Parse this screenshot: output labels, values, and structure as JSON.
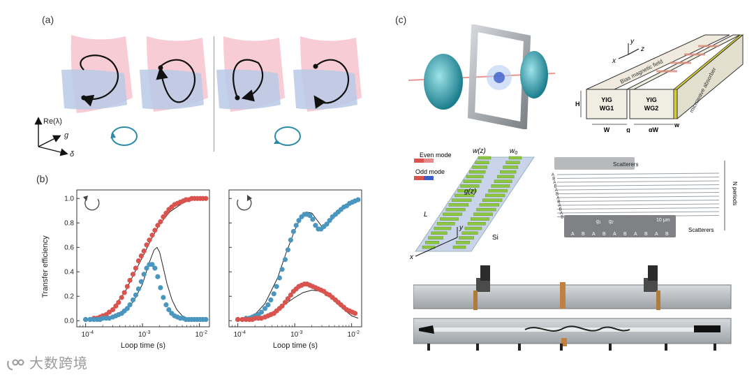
{
  "labels": {
    "a": "(a)",
    "b": "(b)",
    "c": "(c)"
  },
  "panel_a": {
    "axis_re": "Re(λ)",
    "axis_g": "g",
    "axis_delta": "δ"
  },
  "chart_data": [
    {
      "type": "scatter",
      "panel": "left",
      "title": "",
      "xlabel": "Loop time (s)",
      "ylabel": "Transfer efficiency",
      "xscale": "log",
      "xlim": [
        7e-05,
        0.015
      ],
      "ylim": [
        -0.05,
        1.07
      ],
      "xticks": [
        "10^-4",
        "10^-3",
        "10^-2"
      ],
      "yticks": [
        "0.0",
        "0.2",
        "0.4",
        "0.6",
        "0.8",
        "1.0"
      ],
      "rotation": "counterclockwise",
      "series": [
        {
          "color": "#d9534f",
          "x": [
            0.0001,
            0.00012,
            0.00014,
            0.00016,
            0.00018,
            0.0002,
            0.00023,
            0.00026,
            0.0003,
            0.00034,
            0.00038,
            0.00043,
            0.00048,
            0.00054,
            0.0006,
            0.00068,
            0.00076,
            0.00085,
            0.00095,
            0.00106,
            0.00118,
            0.00132,
            0.00148,
            0.00165,
            0.00185,
            0.00207,
            0.00232,
            0.0026,
            0.0029,
            0.00325,
            0.00365,
            0.0041,
            0.0046,
            0.0052,
            0.0058,
            0.0065,
            0.0073,
            0.0082,
            0.0092,
            0.0103,
            0.0115,
            0.013
          ],
          "y": [
            0.01,
            0.01,
            0.02,
            0.02,
            0.03,
            0.04,
            0.05,
            0.07,
            0.09,
            0.12,
            0.15,
            0.19,
            0.23,
            0.28,
            0.33,
            0.38,
            0.43,
            0.49,
            0.53,
            0.57,
            0.62,
            0.66,
            0.7,
            0.74,
            0.78,
            0.81,
            0.85,
            0.88,
            0.91,
            0.93,
            0.95,
            0.96,
            0.97,
            0.98,
            0.99,
            0.99,
            1.0,
            1.0,
            1.0,
            1.0,
            1.0,
            1.0
          ]
        },
        {
          "color": "#4a96bf",
          "x": [
            0.0001,
            0.00012,
            0.00014,
            0.00016,
            0.00018,
            0.0002,
            0.00023,
            0.00026,
            0.0003,
            0.00034,
            0.00038,
            0.00043,
            0.00048,
            0.00054,
            0.0006,
            0.00068,
            0.00076,
            0.00085,
            0.00095,
            0.00106,
            0.00118,
            0.00132,
            0.00148,
            0.00165,
            0.00185,
            0.00207,
            0.00232,
            0.0026,
            0.0029,
            0.00325,
            0.00365,
            0.0041,
            0.0046,
            0.0052,
            0.0058,
            0.0065,
            0.0073,
            0.0082,
            0.0092,
            0.0103,
            0.0115,
            0.013
          ],
          "y": [
            0.01,
            0.01,
            0.01,
            0.01,
            0.01,
            0.02,
            0.02,
            0.02,
            0.03,
            0.04,
            0.05,
            0.06,
            0.08,
            0.1,
            0.13,
            0.17,
            0.21,
            0.26,
            0.32,
            0.38,
            0.43,
            0.46,
            0.46,
            0.43,
            0.36,
            0.27,
            0.19,
            0.13,
            0.09,
            0.06,
            0.04,
            0.03,
            0.02,
            0.02,
            0.01,
            0.01,
            0.01,
            0.01,
            0.01,
            0.01,
            0.01,
            0.01
          ]
        }
      ],
      "fit_lines": [
        {
          "color": "#222222",
          "x": [
            0.0001,
            0.0002,
            0.0003,
            0.0005,
            0.0007,
            0.001,
            0.0014,
            0.002,
            0.003,
            0.005,
            0.007,
            0.01,
            0.013
          ],
          "y": [
            0.0,
            0.04,
            0.1,
            0.24,
            0.38,
            0.52,
            0.66,
            0.79,
            0.89,
            0.96,
            0.99,
            1.0,
            1.0
          ]
        },
        {
          "color": "#222222",
          "x": [
            0.0001,
            0.0002,
            0.0003,
            0.0005,
            0.0007,
            0.001,
            0.0013,
            0.0016,
            0.0018,
            0.002,
            0.0023,
            0.0027,
            0.0033,
            0.004,
            0.005,
            0.007,
            0.01,
            0.013
          ],
          "y": [
            0.0,
            0.01,
            0.03,
            0.08,
            0.16,
            0.3,
            0.47,
            0.58,
            0.6,
            0.56,
            0.44,
            0.3,
            0.17,
            0.09,
            0.04,
            0.01,
            0.0,
            0.0
          ]
        }
      ]
    },
    {
      "type": "scatter",
      "panel": "right",
      "title": "",
      "xlabel": "Loop time (s)",
      "ylabel": "",
      "xscale": "log",
      "xlim": [
        7e-05,
        0.015
      ],
      "ylim": [
        -0.05,
        1.07
      ],
      "xticks": [
        "10^-4",
        "10^-3",
        "10^-2"
      ],
      "yticks": [],
      "rotation": "clockwise",
      "series": [
        {
          "color": "#4a96bf",
          "x": [
            0.0001,
            0.00012,
            0.00014,
            0.00016,
            0.00018,
            0.0002,
            0.00023,
            0.00026,
            0.0003,
            0.00034,
            0.00038,
            0.00043,
            0.00048,
            0.00054,
            0.0006,
            0.00068,
            0.00076,
            0.00085,
            0.00095,
            0.00106,
            0.00118,
            0.00132,
            0.00148,
            0.00165,
            0.00185,
            0.00207,
            0.00232,
            0.0026,
            0.0029,
            0.00325,
            0.00365,
            0.0041,
            0.0046,
            0.0052,
            0.0058,
            0.0065,
            0.0073,
            0.0082,
            0.0092,
            0.0103,
            0.0115,
            0.013
          ],
          "y": [
            0.01,
            0.01,
            0.02,
            0.02,
            0.03,
            0.04,
            0.05,
            0.07,
            0.1,
            0.13,
            0.17,
            0.22,
            0.28,
            0.35,
            0.42,
            0.5,
            0.58,
            0.66,
            0.73,
            0.78,
            0.82,
            0.85,
            0.87,
            0.87,
            0.86,
            0.83,
            0.78,
            0.75,
            0.75,
            0.77,
            0.79,
            0.82,
            0.85,
            0.87,
            0.89,
            0.91,
            0.93,
            0.94,
            0.96,
            0.97,
            0.98,
            0.99
          ]
        },
        {
          "color": "#d9534f",
          "x": [
            0.0001,
            0.00012,
            0.00014,
            0.00016,
            0.00018,
            0.0002,
            0.00023,
            0.00026,
            0.0003,
            0.00034,
            0.00038,
            0.00043,
            0.00048,
            0.00054,
            0.0006,
            0.00068,
            0.00076,
            0.00085,
            0.00095,
            0.00106,
            0.00118,
            0.00132,
            0.00148,
            0.00165,
            0.00185,
            0.00207,
            0.00232,
            0.0026,
            0.0029,
            0.00325,
            0.00365,
            0.0041,
            0.0046,
            0.0052,
            0.0058,
            0.0065,
            0.0073,
            0.0082,
            0.0092,
            0.0103,
            0.0115
          ],
          "y": [
            0.01,
            0.01,
            0.01,
            0.01,
            0.01,
            0.02,
            0.02,
            0.02,
            0.03,
            0.04,
            0.05,
            0.06,
            0.08,
            0.1,
            0.12,
            0.15,
            0.18,
            0.21,
            0.24,
            0.26,
            0.28,
            0.29,
            0.3,
            0.3,
            0.29,
            0.28,
            0.27,
            0.26,
            0.25,
            0.24,
            0.22,
            0.21,
            0.19,
            0.17,
            0.15,
            0.13,
            0.11,
            0.09,
            0.08,
            0.07,
            0.06
          ]
        }
      ],
      "fit_lines": [
        {
          "color": "#222222",
          "x": [
            0.0001,
            0.0002,
            0.0003,
            0.0005,
            0.0007,
            0.001,
            0.0013,
            0.0016,
            0.002,
            0.0025,
            0.003,
            0.0035,
            0.004,
            0.005,
            0.007,
            0.01,
            0.013
          ],
          "y": [
            0.0,
            0.05,
            0.14,
            0.35,
            0.55,
            0.74,
            0.85,
            0.89,
            0.88,
            0.82,
            0.77,
            0.77,
            0.8,
            0.85,
            0.91,
            0.96,
            0.98
          ]
        },
        {
          "color": "#222222",
          "x": [
            0.0001,
            0.0002,
            0.0003,
            0.0005,
            0.0007,
            0.001,
            0.0014,
            0.002,
            0.003,
            0.004,
            0.005,
            0.007,
            0.01,
            0.013
          ],
          "y": [
            0.0,
            0.02,
            0.04,
            0.09,
            0.14,
            0.19,
            0.23,
            0.25,
            0.24,
            0.2,
            0.16,
            0.1,
            0.04,
            0.02
          ]
        }
      ]
    }
  ],
  "panel_c": {
    "coord_y": "y",
    "coord_x": "x",
    "coord_z": "z",
    "bias_field": "Bias magnetic field",
    "absorber": "microwave absorber",
    "wg1_line1": "YIG",
    "wg1_line2": "WG1",
    "wg2_line1": "YIG",
    "wg2_line2": "WG2",
    "dim_H": "H",
    "dim_W": "W",
    "dim_g": "g",
    "dim_aW": "αW",
    "dim_w": "w",
    "even_mode": "Even mode",
    "odd_mode": "Odd mode",
    "wz": "w(z)",
    "w0": "w",
    "w0_sub": "0",
    "gz": "g(z)",
    "L": "L",
    "si": "Si",
    "grating_x": "x",
    "grating_y": "y",
    "scatterers_top": "Scatterers",
    "scatterers_bottom": "Scatterers",
    "n_periods": "N periods",
    "scale_bar": "10 μm",
    "g1": "g",
    "g1_sub": "1",
    "g2": "g",
    "g2_sub": "2",
    "ab_letters": [
      "A",
      "B",
      "A",
      "B",
      "A",
      "B",
      "A",
      "B",
      "A",
      "B",
      "A",
      "B"
    ],
    "bottom_ab": [
      "A",
      "B",
      "A",
      "B",
      "A",
      "B",
      "A",
      "B",
      "A",
      "B"
    ]
  },
  "watermark": "大数跨境"
}
